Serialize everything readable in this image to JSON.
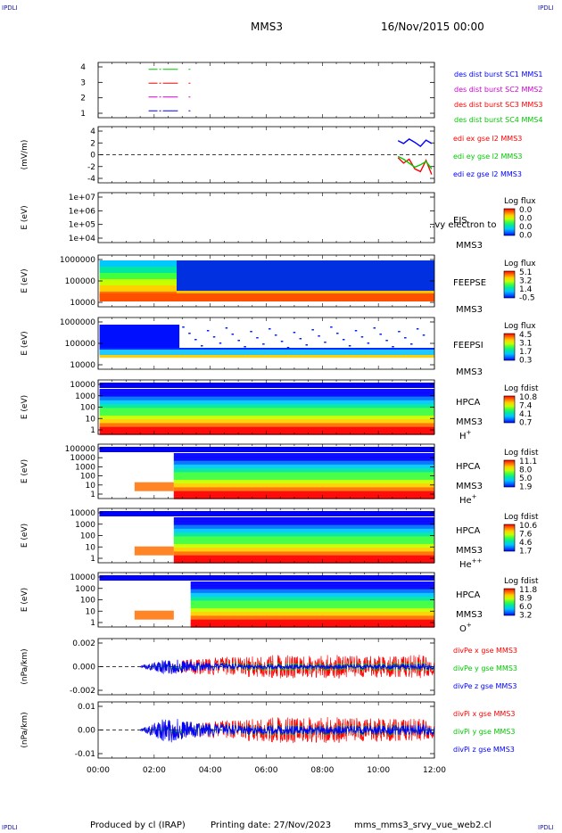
{
  "corners": {
    "tl": "IPDLI",
    "tr": "IPDLI",
    "bl": "IPDLI",
    "br": "IPDLI"
  },
  "header": {
    "spacecraft": "MMS3",
    "date": "16/Nov/2015 00:00"
  },
  "footer": {
    "produced_by": "Produced by cl (IRAP)",
    "printing_date": "Printing date: 27/Nov/2023",
    "filename": "mms_mms3_srvy_vue_web2.cl"
  },
  "colors": {
    "red": "#ff0000",
    "green": "#00c800",
    "blue": "#0000ff",
    "magenta": "#d000d0",
    "dashed_zero": "#000000"
  },
  "chart_data": [
    {
      "id": "burst",
      "type": "line",
      "yticks": [
        "4",
        "3",
        "2",
        "1"
      ],
      "ylim": [
        0.5,
        4.5
      ],
      "legend": [
        {
          "name": "des dist burst SC1 MMS1",
          "color": "#0000ff"
        },
        {
          "name": "des dist burst SC2 MMS2",
          "color": "#d000d0"
        },
        {
          "name": "des dist burst SC3 MMS3",
          "color": "#ff0000"
        },
        {
          "name": "des dist burst SC4 MMS4",
          "color": "#00c800"
        }
      ],
      "series": [
        {
          "name": "des dist burst SC4 MMS4",
          "y": 4,
          "x": [
            1.8,
            3.1
          ],
          "color": "#00c800"
        },
        {
          "name": "des dist burst SC3 MMS3",
          "y": 3,
          "x": [
            1.8,
            3.1
          ],
          "color": "#ff0000"
        },
        {
          "name": "des dist burst SC2 MMS2",
          "y": 2,
          "x": [
            1.8,
            3.1
          ],
          "color": "#d000d0"
        },
        {
          "name": "des dist burst SC1 MMS1",
          "y": 1,
          "x": [
            1.8,
            3.1
          ],
          "color": "#0000ff"
        }
      ]
    },
    {
      "id": "edi",
      "type": "line",
      "ylabel": "(mV/m)",
      "yticks": [
        "4",
        "2",
        "0",
        "-2",
        "-4"
      ],
      "ylim": [
        -5,
        5
      ],
      "legend": [
        {
          "name": "edi ex gse l2 MMS3",
          "color": "#ff0000"
        },
        {
          "name": "edi ey gse l2 MMS3",
          "color": "#00c800"
        },
        {
          "name": "edi ez gse l2 MMS3",
          "color": "#0000ff"
        }
      ],
      "series": [
        {
          "name": "edi ez gse l2 MMS3",
          "color": "#0000ff",
          "x": [
            10.7,
            10.9,
            11.1,
            11.3,
            11.5,
            11.7,
            11.9
          ],
          "y": [
            2.5,
            2.0,
            2.8,
            2.2,
            1.5,
            2.6,
            2.0
          ]
        },
        {
          "name": "edi ex gse l2 MMS3",
          "color": "#ff0000",
          "x": [
            10.7,
            10.9,
            11.1,
            11.3,
            11.5,
            11.7,
            11.9
          ],
          "y": [
            -0.5,
            -1.5,
            -0.8,
            -2.5,
            -3.0,
            -1.0,
            -3.5
          ]
        },
        {
          "name": "edi ey gse l2 MMS3",
          "color": "#00c800",
          "x": [
            10.7,
            10.9,
            11.1,
            11.3,
            11.5,
            11.7,
            11.9
          ],
          "y": [
            -0.3,
            -0.8,
            -1.5,
            -2.2,
            -1.8,
            -1.2,
            -2.5
          ]
        }
      ]
    },
    {
      "id": "eis",
      "type": "heatmap",
      "ylabel": "E (eV)",
      "yticks": [
        "1e+07",
        "1e+06",
        "1e+05",
        "1e+04"
      ],
      "labels": [
        "EIS",
        "MMS3"
      ],
      "overlay": "..vy electron to",
      "cbar_title": "Log flux",
      "cbar_ticks": [
        "0.0",
        "0.0",
        "0.0",
        "0.0"
      ]
    },
    {
      "id": "feepse",
      "type": "heatmap",
      "ylabel": "E (eV)",
      "yticks": [
        "1000000",
        "100000",
        "10000"
      ],
      "labels": [
        "FEEPSE",
        "MMS3"
      ],
      "cbar_title": "Log flux",
      "cbar_ticks": [
        "5.1",
        "3.2",
        "1.4",
        "-0.5"
      ]
    },
    {
      "id": "feepsi",
      "type": "heatmap",
      "ylabel": "E (eV)",
      "yticks": [
        "1000000",
        "100000",
        "10000"
      ],
      "labels": [
        "FEEPSI",
        "MMS3"
      ],
      "cbar_title": "Log flux",
      "cbar_ticks": [
        "4.5",
        "3.1",
        "1.7",
        "0.3"
      ]
    },
    {
      "id": "hpca_h",
      "type": "heatmap",
      "ylabel": "E (eV)",
      "yticks": [
        "10000",
        "1000",
        "100",
        "10",
        "1"
      ],
      "labels": [
        "HPCA",
        "MMS3"
      ],
      "species": "H",
      "species_sup": "+",
      "cbar_title": "Log fdist",
      "cbar_ticks": [
        "10.8",
        "7.4",
        "4.1",
        "0.7"
      ]
    },
    {
      "id": "hpca_he",
      "type": "heatmap",
      "ylabel": "E (eV)",
      "yticks": [
        "100000",
        "10000",
        "1000",
        "100",
        "10",
        "1"
      ],
      "labels": [
        "HPCA",
        "MMS3"
      ],
      "species": "He",
      "species_sup": "+",
      "cbar_title": "Log fdist",
      "cbar_ticks": [
        "11.1",
        "8.0",
        "5.0",
        "1.9"
      ]
    },
    {
      "id": "hpca_hepp",
      "type": "heatmap",
      "ylabel": "E (eV)",
      "yticks": [
        "10000",
        "1000",
        "100",
        "10",
        "1"
      ],
      "labels": [
        "HPCA",
        "MMS3"
      ],
      "species": "He",
      "species_sup": "++",
      "cbar_title": "Log fdist",
      "cbar_ticks": [
        "10.6",
        "7.6",
        "4.6",
        "1.7"
      ]
    },
    {
      "id": "hpca_o",
      "type": "heatmap",
      "ylabel": "E (eV)",
      "yticks": [
        "10000",
        "1000",
        "100",
        "10",
        "1"
      ],
      "labels": [
        "HPCA",
        "MMS3"
      ],
      "species": "O",
      "species_sup": "+",
      "cbar_title": "Log fdist",
      "cbar_ticks": [
        "11.8",
        "8.9",
        "6.0",
        "3.2"
      ]
    },
    {
      "id": "divpe",
      "type": "line",
      "ylabel": "(nPa/km)",
      "yticks": [
        "0.002",
        "0.000",
        "-0.002"
      ],
      "ylim": [
        -0.0035,
        0.0035
      ],
      "legend": [
        {
          "name": "divPe x gse MMS3",
          "color": "#ff0000"
        },
        {
          "name": "divPe y gse MMS3",
          "color": "#00c800"
        },
        {
          "name": "divPe z gse MMS3",
          "color": "#0000ff"
        }
      ],
      "series": [
        {
          "name": "divPe x gse MMS3",
          "color": "#ff0000",
          "x": [
            1.5,
            2.5,
            3.5,
            4.5,
            5.5,
            6.5,
            7.5,
            8.5,
            9.5,
            10.5,
            11.5,
            12.0
          ],
          "envelope": [
            0.0001,
            0.0008,
            0.001,
            0.0012,
            0.0013,
            0.0015,
            0.0014,
            0.0015,
            0.0014,
            0.0013,
            0.0015,
            0.0012
          ]
        },
        {
          "name": "divPe y gse MMS3",
          "color": "#00c800",
          "x": [
            1.5,
            2.5,
            3.5,
            4.5,
            5.5,
            6.5,
            7.5,
            8.5,
            9.5,
            10.5,
            11.5,
            12.0
          ],
          "envelope": [
            0.0001,
            0.0004,
            0.0004,
            0.0005,
            0.0005,
            0.0005,
            0.0005,
            0.0005,
            0.0005,
            0.0005,
            0.0006,
            0.0005
          ]
        },
        {
          "name": "divPe z gse MMS3",
          "color": "#0000ff",
          "x": [
            1.5,
            2.5,
            3.5,
            4.5,
            5.5,
            6.5,
            7.5,
            8.5,
            9.5,
            10.5,
            11.5,
            12.0
          ],
          "envelope": [
            0.0001,
            0.001,
            0.0006,
            0.0004,
            0.0003,
            0.0003,
            0.0003,
            0.0003,
            0.0003,
            0.0003,
            0.0004,
            0.0004
          ]
        }
      ]
    },
    {
      "id": "divpi",
      "type": "line",
      "ylabel": "(nPa/km)",
      "xlabel_ticks": [
        "00:00",
        "02:00",
        "04:00",
        "06:00",
        "08:00",
        "10:00",
        "12:00"
      ],
      "yticks": [
        "0.01",
        "0.00",
        "-0.01"
      ],
      "ylim": [
        -0.015,
        0.015
      ],
      "legend": [
        {
          "name": "divPi x gse MMS3",
          "color": "#ff0000"
        },
        {
          "name": "divPi y gse MMS3",
          "color": "#00c800"
        },
        {
          "name": "divPi z gse MMS3",
          "color": "#0000ff"
        }
      ],
      "series": [
        {
          "name": "divPi x gse MMS3",
          "color": "#ff0000",
          "x": [
            1.5,
            2.5,
            3.5,
            4.5,
            5.5,
            6.5,
            7.5,
            8.5,
            9.5,
            10.5,
            11.5,
            12.0
          ],
          "envelope": [
            0.0005,
            0.004,
            0.004,
            0.005,
            0.006,
            0.007,
            0.007,
            0.007,
            0.0065,
            0.006,
            0.006,
            0.005
          ]
        },
        {
          "name": "divPi y gse MMS3",
          "color": "#00c800",
          "x": [
            1.5,
            2.5,
            3.5,
            4.5,
            5.5,
            6.5,
            7.5,
            8.5,
            9.5,
            10.5,
            11.5,
            12.0
          ],
          "envelope": [
            0.0005,
            0.002,
            0.003,
            0.003,
            0.003,
            0.003,
            0.003,
            0.003,
            0.003,
            0.003,
            0.003,
            0.003
          ]
        },
        {
          "name": "divPi z gse MMS3",
          "color": "#0000ff",
          "x": [
            1.5,
            2.5,
            3.5,
            4.5,
            5.5,
            6.5,
            7.5,
            8.5,
            9.5,
            10.5,
            11.5,
            12.0
          ],
          "envelope": [
            0.0005,
            0.007,
            0.004,
            0.003,
            0.0025,
            0.0025,
            0.0025,
            0.0025,
            0.0025,
            0.0025,
            0.003,
            0.003
          ]
        }
      ]
    }
  ]
}
